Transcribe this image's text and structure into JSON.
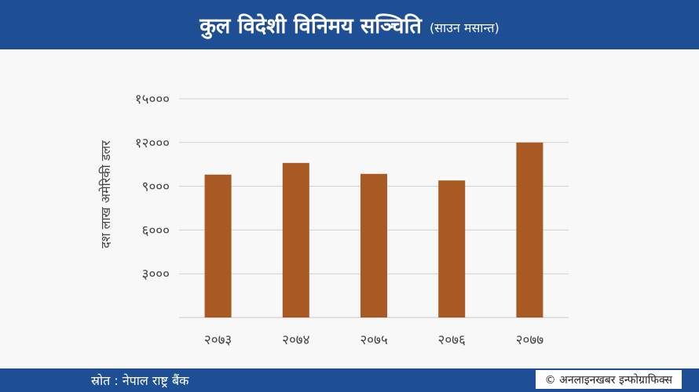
{
  "header": {
    "title": "कुल विदेशी विनिमय सञ्चिति",
    "subtitle": "(साउन मसान्त)"
  },
  "footer": {
    "source": "स्रोत : नेपाल राष्ट्र बैंक",
    "credit": "© अनलाइनखबर इन्फोग्राफिक्स"
  },
  "colors": {
    "header_bg": "#1e4f95",
    "bar": "#a85a22",
    "grid": "#d0d0d0"
  },
  "chart_data": {
    "type": "bar",
    "title": "कुल विदेशी विनिमय सञ्चिति",
    "subtitle": "(साउन मसान्त)",
    "xlabel": "",
    "ylabel": "दश लाख अमेरिकी डलर",
    "categories": [
      "२०७३",
      "२०७४",
      "२०७५",
      "२०७६",
      "२०७७"
    ],
    "values": [
      9800,
      10600,
      9850,
      9400,
      12000
    ],
    "ylim": [
      0,
      15000
    ],
    "yticks": [
      3000,
      6000,
      9000,
      12000,
      15000
    ],
    "ytick_labels": [
      "३०००",
      "६०००",
      "९०००",
      "१२०००",
      "१५०००"
    ],
    "grid": true,
    "legend": "none"
  }
}
